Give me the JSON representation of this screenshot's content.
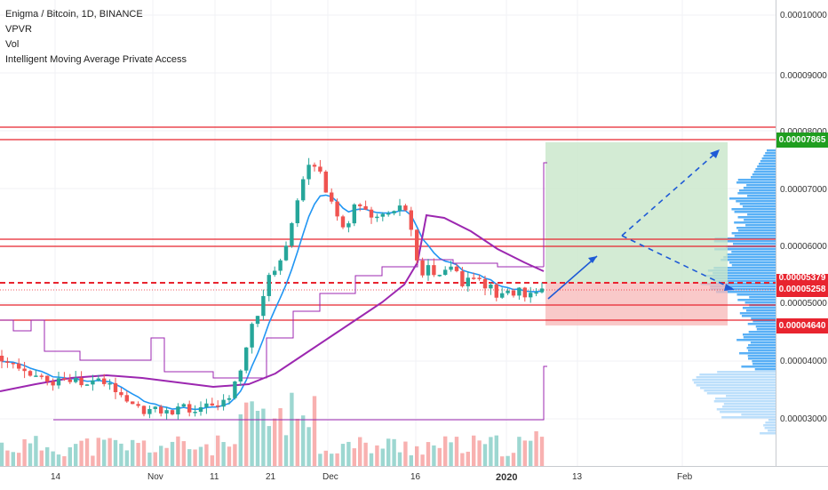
{
  "legend": {
    "title": "Enigma / Bitcoin, 1D, BINANCE",
    "indicators": [
      "VPVR",
      "Vol",
      "Intelligent Moving Average Private Access"
    ]
  },
  "y_axis_labels": [
    "0.00010000",
    "0.00009000",
    "0.00008000",
    "0.00007000",
    "0.00006000",
    "0.00005000",
    "0.00004000",
    "0.00003000"
  ],
  "price_labels": {
    "target": {
      "text": "0.00007865",
      "color": "#1f9e1f"
    },
    "current": {
      "text": "0.00005258",
      "color": "#e8242f"
    },
    "stop": {
      "text": "0.00004640",
      "color": "#e8242f"
    },
    "hidden": {
      "text": "0.00005379",
      "color": "#e8242f"
    }
  },
  "x_axis_labels": [
    {
      "text": "14",
      "bold": false
    },
    {
      "text": "Nov",
      "bold": false
    },
    {
      "text": "11",
      "bold": false
    },
    {
      "text": "21",
      "bold": false
    },
    {
      "text": "Dec",
      "bold": false
    },
    {
      "text": "16",
      "bold": false
    },
    {
      "text": "2020",
      "bold": true
    },
    {
      "text": "13",
      "bold": false
    },
    {
      "text": "Feb",
      "bold": false
    }
  ],
  "colors": {
    "up": "#26a69a",
    "down": "#ef5350",
    "ema": "#2196f3",
    "ma": "#9c27b0",
    "hline": "#e8242f",
    "profit": "#c8e6c9",
    "loss": "#f8bbbb",
    "vpvr": "#2196f3"
  }
}
